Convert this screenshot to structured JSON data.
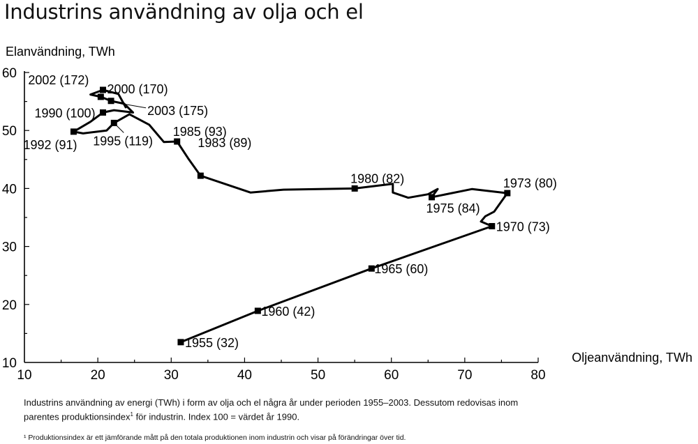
{
  "chart_data": {
    "type": "line",
    "title": "Industrins användning av olja och el",
    "xlabel": "Oljeanvändning, TWh",
    "ylabel": "Elanvändning, TWh",
    "xlim": [
      10,
      80
    ],
    "ylim": [
      10,
      60
    ],
    "xticks": [
      10,
      20,
      30,
      40,
      50,
      60,
      70,
      80
    ],
    "yticks": [
      10,
      20,
      30,
      40,
      50,
      60
    ],
    "grid": false,
    "series": [
      {
        "values_note_units": "TWh",
        "points": [
          {
            "x": 31.3,
            "y": 13.5
          },
          {
            "x": 41.8,
            "y": 18.9
          },
          {
            "x": 57.3,
            "y": 26.2
          },
          {
            "x": 73.7,
            "y": 33.5
          },
          {
            "x": 72.2,
            "y": 34.3
          },
          {
            "x": 72.8,
            "y": 35.2
          },
          {
            "x": 74.0,
            "y": 36.0
          },
          {
            "x": 75.8,
            "y": 39.2
          },
          {
            "x": 71.0,
            "y": 39.9
          },
          {
            "x": 65.5,
            "y": 38.5
          },
          {
            "x": 66.3,
            "y": 39.9
          },
          {
            "x": 65.0,
            "y": 39.0
          },
          {
            "x": 62.3,
            "y": 38.4
          },
          {
            "x": 60.2,
            "y": 39.3
          },
          {
            "x": 60.2,
            "y": 40.8
          },
          {
            "x": 55.0,
            "y": 40.0
          },
          {
            "x": 45.3,
            "y": 39.8
          },
          {
            "x": 40.8,
            "y": 39.3
          },
          {
            "x": 34.0,
            "y": 42.2
          },
          {
            "x": 32.3,
            "y": 45.2
          },
          {
            "x": 30.8,
            "y": 48.1
          },
          {
            "x": 29.0,
            "y": 48.0
          },
          {
            "x": 27.0,
            "y": 51.0
          },
          {
            "x": 24.3,
            "y": 52.8
          },
          {
            "x": 22.2,
            "y": 51.3
          },
          {
            "x": 21.2,
            "y": 50.0
          },
          {
            "x": 18.0,
            "y": 49.5
          },
          {
            "x": 16.7,
            "y": 49.8
          },
          {
            "x": 19.0,
            "y": 51.5
          },
          {
            "x": 20.7,
            "y": 53.1
          },
          {
            "x": 22.2,
            "y": 53.5
          },
          {
            "x": 24.8,
            "y": 53.1
          },
          {
            "x": 23.6,
            "y": 54.6
          },
          {
            "x": 21.8,
            "y": 55.1
          },
          {
            "x": 20.4,
            "y": 55.8
          },
          {
            "x": 19.0,
            "y": 56.2
          },
          {
            "x": 20.7,
            "y": 57.0
          },
          {
            "x": 22.8,
            "y": 56.3
          },
          {
            "x": 23.8,
            "y": 54.0
          }
        ],
        "markers": [
          {
            "x": 31.3,
            "y": 13.5,
            "label": "1955 (32)"
          },
          {
            "x": 41.8,
            "y": 18.9,
            "label": "1960 (42)"
          },
          {
            "x": 57.3,
            "y": 26.2,
            "label": "1965 (60)"
          },
          {
            "x": 73.7,
            "y": 33.5,
            "label": "1970 (73)"
          },
          {
            "x": 75.8,
            "y": 39.2,
            "label": "1973 (80)"
          },
          {
            "x": 65.5,
            "y": 38.5,
            "label": "1975 (84)"
          },
          {
            "x": 55.0,
            "y": 40.0,
            "label": "1980 (82)"
          },
          {
            "x": 34.0,
            "y": 42.2,
            "label": "1983 (89)"
          },
          {
            "x": 30.8,
            "y": 48.1,
            "label": "1985 (93)"
          },
          {
            "x": 20.7,
            "y": 53.1,
            "label": "1990 (100)"
          },
          {
            "x": 16.7,
            "y": 49.8,
            "label": "1992 (91)"
          },
          {
            "x": 22.2,
            "y": 51.3,
            "label": "1995 (119)"
          },
          {
            "x": 20.7,
            "y": 57.0,
            "label": "2000 (170)"
          },
          {
            "x": 20.4,
            "y": 55.8,
            "label": "2002 (172)"
          },
          {
            "x": 21.8,
            "y": 55.1,
            "label": "2003 (175)"
          }
        ]
      }
    ]
  },
  "caption": {
    "part1": "Industrins användning av energi (TWh) i form av olja och el några år under perioden 1955–2003. Dessutom redovisas inom parentes produktionsindex",
    "sup": "1",
    "part2": " för industrin. Index 100 = värdet år 1990."
  },
  "footnote": "¹ Produktionsindex är ett jämförande mått på den totala produktionen inom industrin och visar på förändringar över tid."
}
